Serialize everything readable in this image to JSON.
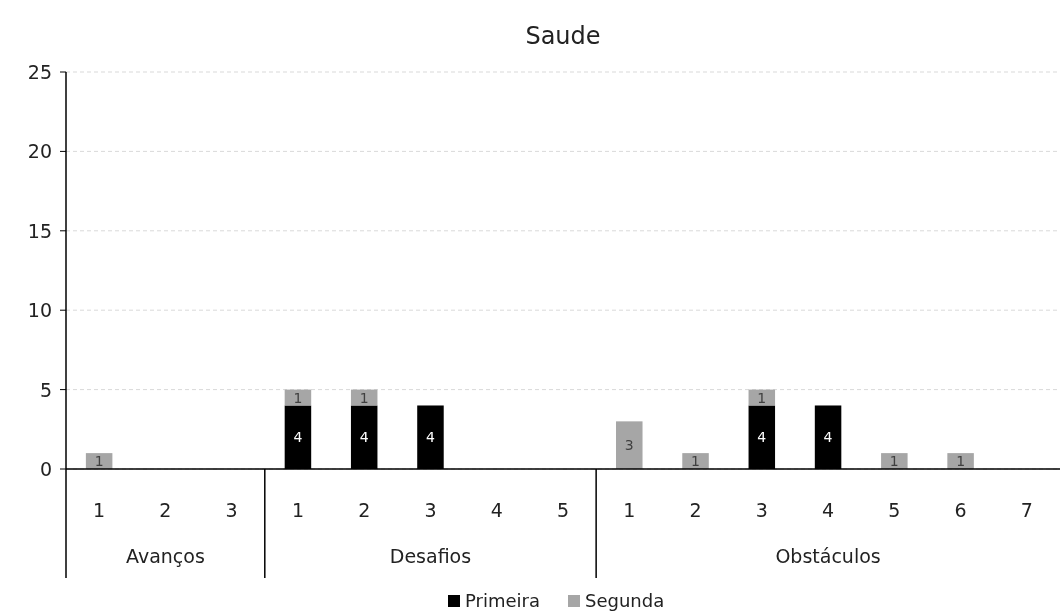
{
  "chart_data": {
    "type": "bar",
    "title": "Saude",
    "stacked": true,
    "categories": [
      "1",
      "2",
      "3",
      "1",
      "2",
      "3",
      "4",
      "5",
      "1",
      "2",
      "3",
      "4",
      "5",
      "6",
      "7"
    ],
    "annotations": [
      "Avanços",
      "Desafios",
      "Obstáculos"
    ],
    "series": [
      {
        "name": "Primeira",
        "color": "#000000",
        "values": [
          0,
          0,
          0,
          4,
          4,
          4,
          0,
          0,
          0,
          0,
          4,
          4,
          0,
          0,
          0
        ],
        "value_labels": [
          null,
          null,
          null,
          "4",
          "4",
          "4",
          null,
          null,
          null,
          null,
          "4",
          "4",
          null,
          null,
          null
        ]
      },
      {
        "name": "Segunda",
        "color": "#a6a6a6",
        "values": [
          1,
          0,
          0,
          1,
          1,
          0,
          0,
          0,
          3,
          1,
          1,
          0,
          1,
          1,
          0
        ],
        "value_labels": [
          "1",
          null,
          null,
          "1",
          "1",
          null,
          null,
          null,
          "3",
          "1",
          "1",
          null,
          "1",
          "1",
          null
        ]
      }
    ],
    "ylim": [
      0,
      25
    ],
    "yticks": [
      0,
      5,
      10,
      15,
      20,
      25
    ],
    "grid": "y",
    "legend": "bottom"
  }
}
